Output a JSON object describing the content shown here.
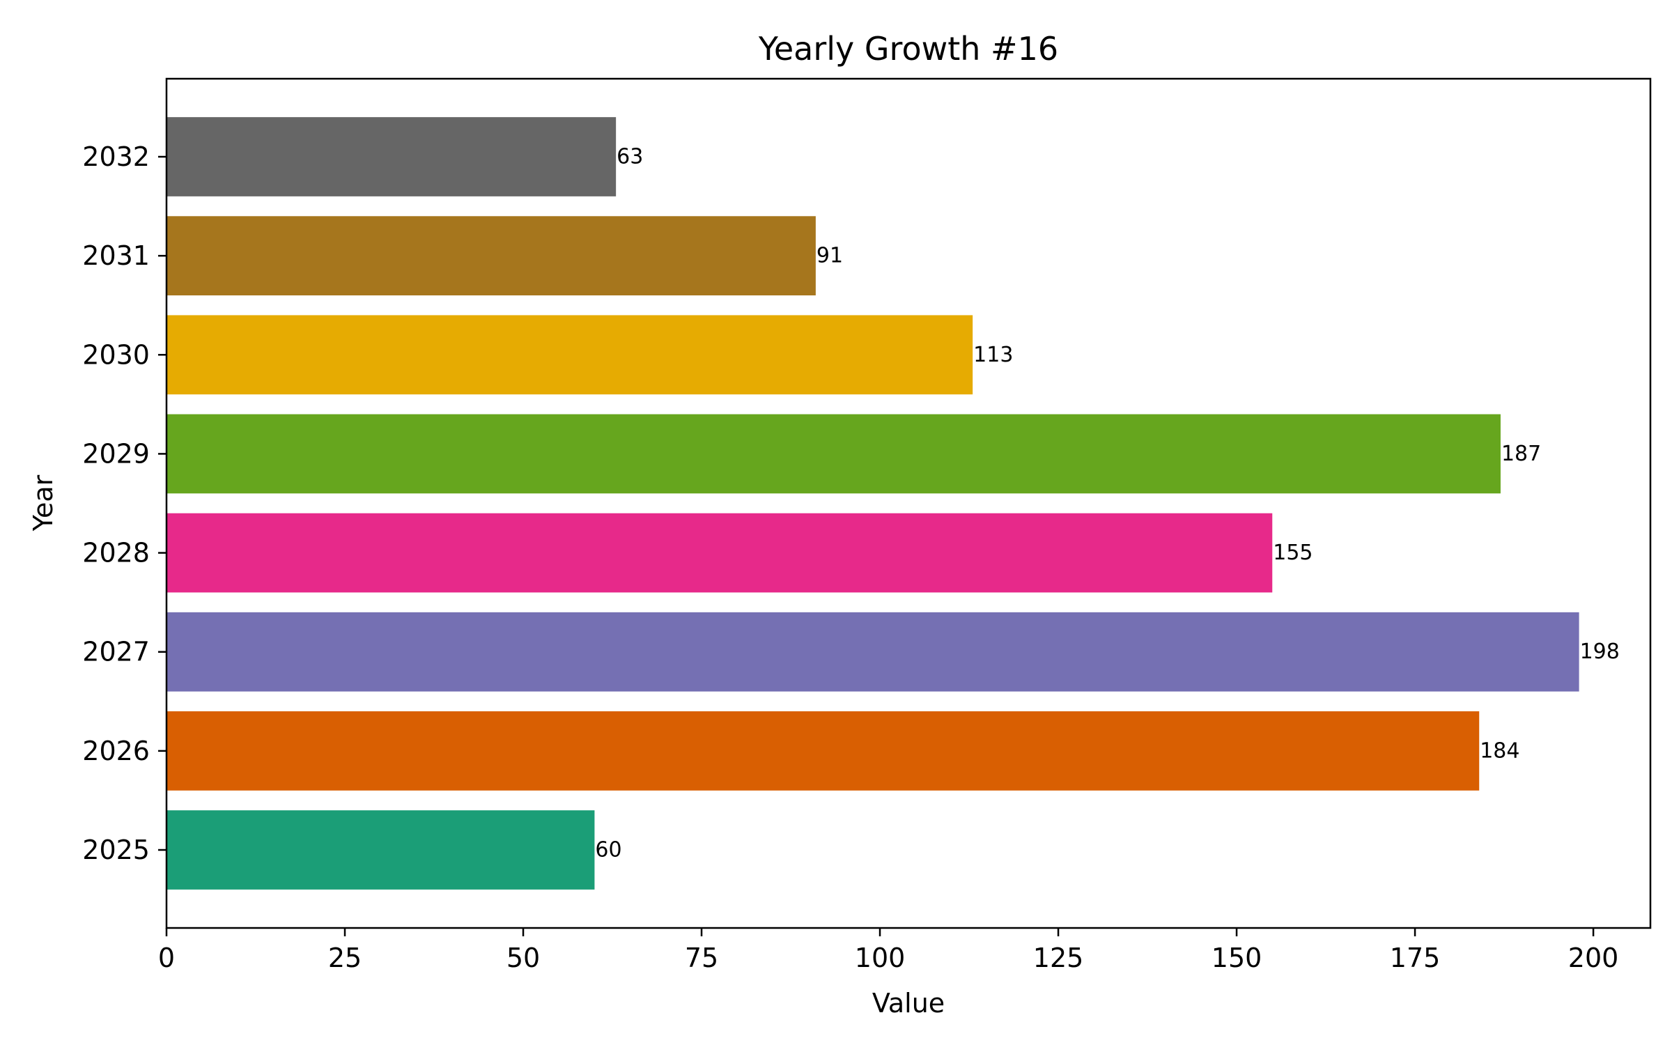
{
  "chart_data": {
    "type": "bar",
    "orientation": "horizontal",
    "title": "Yearly Growth #16",
    "xlabel": "Value",
    "ylabel": "Year",
    "categories": [
      "2025",
      "2026",
      "2027",
      "2028",
      "2029",
      "2030",
      "2031",
      "2032"
    ],
    "values": [
      60,
      184,
      198,
      155,
      187,
      113,
      91,
      63
    ],
    "colors": [
      "#1b9e77",
      "#d95f02",
      "#7570b3",
      "#e7298a",
      "#66a61e",
      "#e6ab02",
      "#a6761d",
      "#666666"
    ],
    "xlim": [
      0,
      208
    ],
    "xticks": [
      0,
      25,
      50,
      75,
      100,
      125,
      150,
      175,
      200
    ],
    "grid": false,
    "legend": "none"
  }
}
